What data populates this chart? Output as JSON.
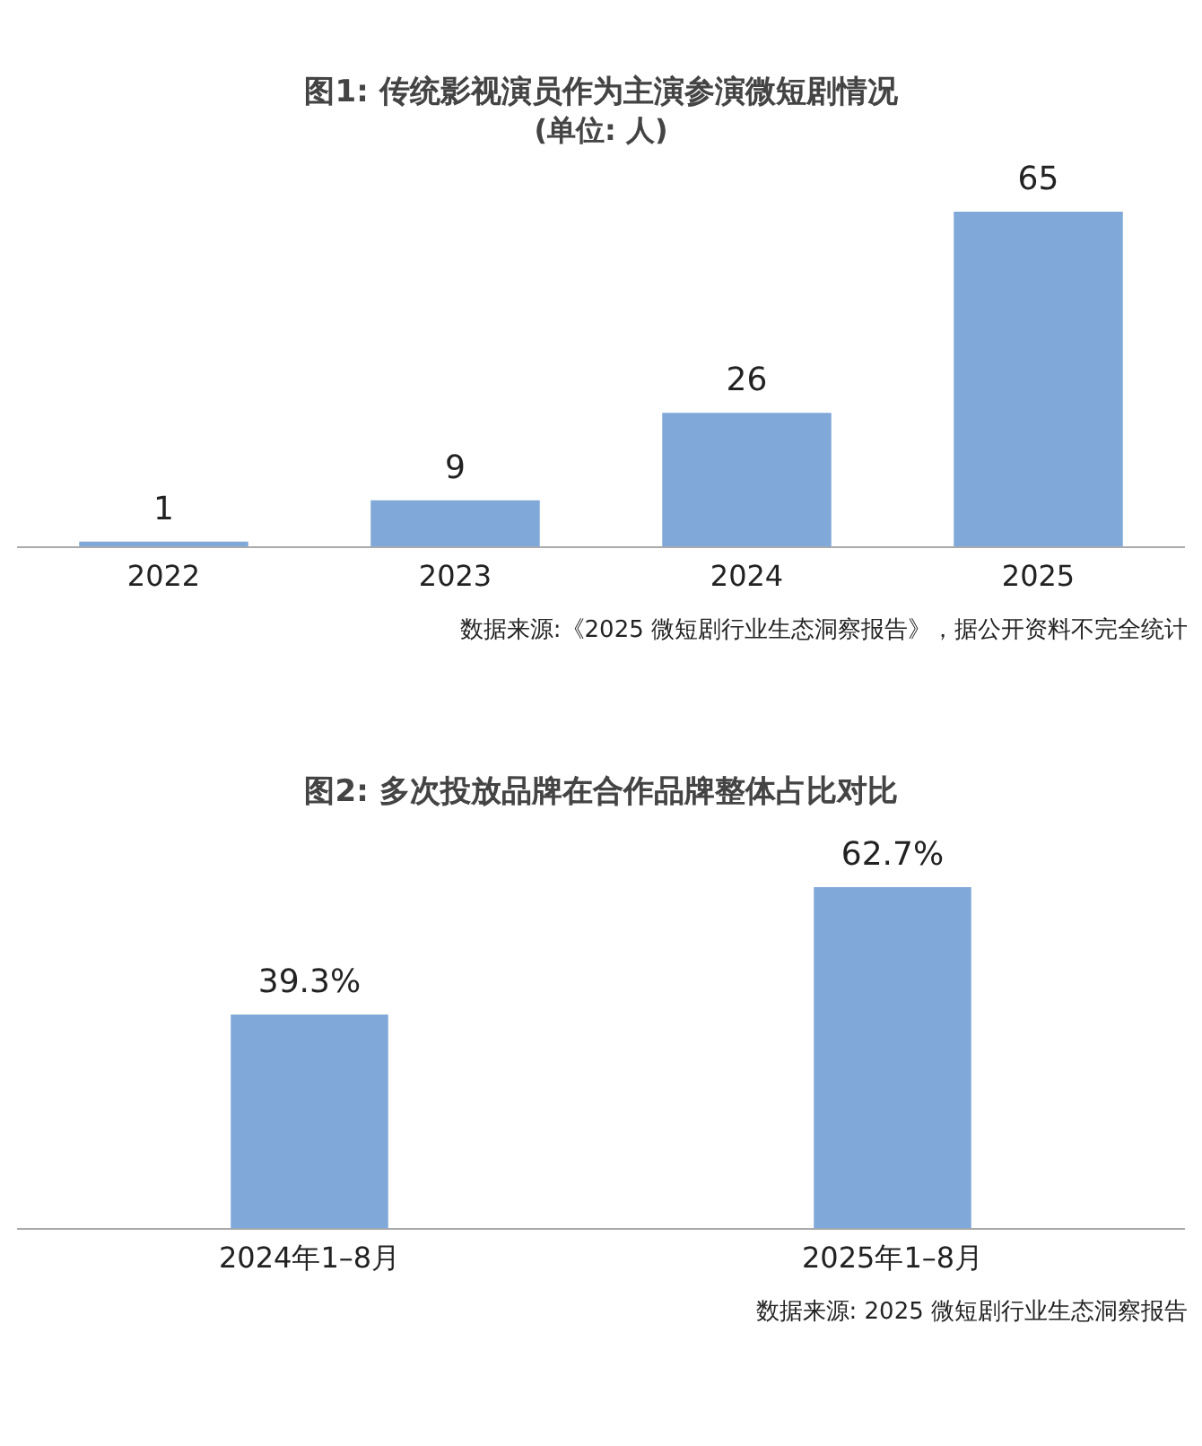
{
  "chart_data": [
    {
      "type": "bar",
      "title": "图1: 传统影视演员作为主演参演微短剧情况",
      "subtitle": "(单位: 人)",
      "categories": [
        "2022",
        "2023",
        "2024",
        "2025"
      ],
      "values": [
        1,
        9,
        26,
        65
      ],
      "color": "#80a8d8",
      "grid": false,
      "legend": false,
      "data_labels": true,
      "tick_labels": "x",
      "annotations": [
        "数据来源:《2025 微短剧行业生态洞察报告》，据公开资料不完全统计"
      ]
    },
    {
      "type": "bar",
      "title": "图2: 多次投放品牌在合作品牌整体占比对比",
      "categories": [
        "2024年1–8月",
        "2025年1–8月"
      ],
      "values": [
        39.3,
        62.7
      ],
      "value_labels": [
        "39.3%",
        "62.7%"
      ],
      "color": "#80a8d8",
      "grid": false,
      "legend": false,
      "tick_labels": "x",
      "annotations": [
        "数据来源: 2025 微短剧行业生态洞察报告"
      ]
    }
  ]
}
